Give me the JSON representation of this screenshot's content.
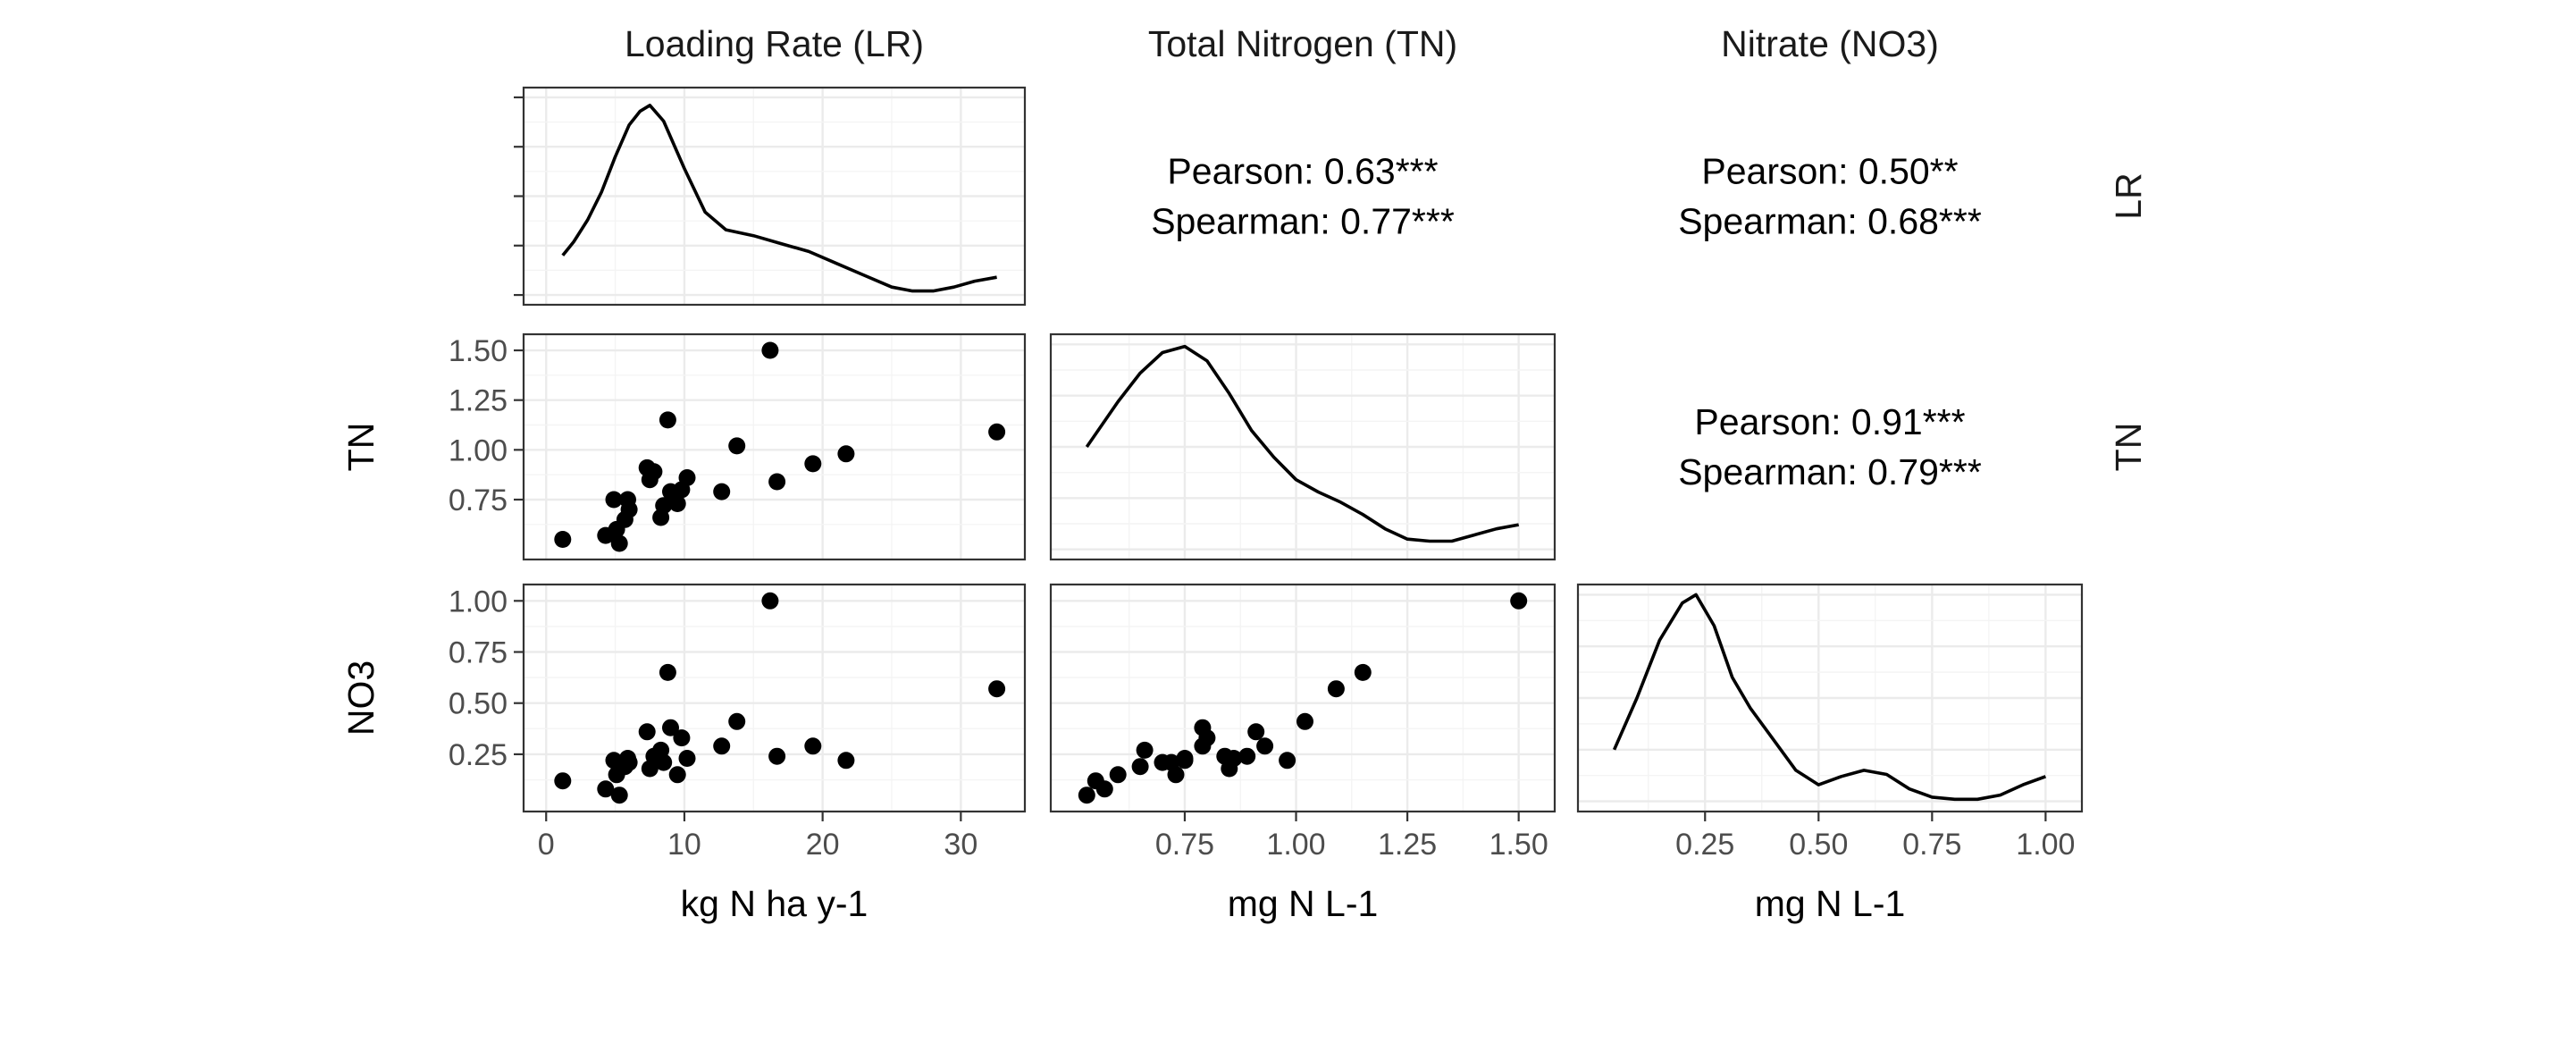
{
  "chart_data": {
    "type": "scatter",
    "variables": [
      {
        "key": "LR",
        "strip_label": "Loading Rate (LR)",
        "row_label": "LR",
        "axis_title": "kg N ha y-1",
        "range": [
          0,
          33
        ],
        "ticks": [
          0,
          10,
          20,
          30
        ],
        "tick_labels": [
          "0",
          "10",
          "20",
          "30"
        ]
      },
      {
        "key": "TN",
        "strip_label": "Total Nitrogen (TN)",
        "row_label": "TN",
        "axis_title": "mg N L-1",
        "range": [
          0.5,
          1.53
        ],
        "ticks": [
          0.75,
          1.0,
          1.25,
          1.5
        ],
        "tick_labels": [
          "0.75",
          "1.00",
          "1.25",
          "1.50"
        ]
      },
      {
        "key": "NO3",
        "strip_label": "Nitrate (NO3)",
        "row_label": "NO3",
        "axis_title": "mg N L-1",
        "range": [
          0.02,
          1.03
        ],
        "ticks": [
          0.25,
          0.5,
          0.75,
          1.0
        ],
        "tick_labels": [
          "0.25",
          "0.50",
          "0.75",
          "1.00"
        ]
      }
    ],
    "observations": [
      {
        "LR": 1.2,
        "TN": 0.55,
        "NO3": 0.12
      },
      {
        "LR": 4.3,
        "TN": 0.57,
        "NO3": 0.08
      },
      {
        "LR": 4.9,
        "TN": 0.75,
        "NO3": 0.22
      },
      {
        "LR": 5.1,
        "TN": 0.6,
        "NO3": 0.15
      },
      {
        "LR": 5.3,
        "TN": 0.53,
        "NO3": 0.05
      },
      {
        "LR": 5.7,
        "TN": 0.65,
        "NO3": 0.19
      },
      {
        "LR": 5.9,
        "TN": 0.75,
        "NO3": 0.23
      },
      {
        "LR": 6.0,
        "TN": 0.7,
        "NO3": 0.21
      },
      {
        "LR": 7.3,
        "TN": 0.91,
        "NO3": 0.36
      },
      {
        "LR": 7.5,
        "TN": 0.85,
        "NO3": 0.18
      },
      {
        "LR": 7.8,
        "TN": 0.89,
        "NO3": 0.24
      },
      {
        "LR": 8.3,
        "TN": 0.66,
        "NO3": 0.27
      },
      {
        "LR": 8.5,
        "TN": 0.72,
        "NO3": 0.21
      },
      {
        "LR": 8.8,
        "TN": 1.15,
        "NO3": 0.65
      },
      {
        "LR": 9.0,
        "TN": 0.79,
        "NO3": 0.38
      },
      {
        "LR": 9.5,
        "TN": 0.73,
        "NO3": 0.15
      },
      {
        "LR": 9.8,
        "TN": 0.8,
        "NO3": 0.33
      },
      {
        "LR": 10.2,
        "TN": 0.86,
        "NO3": 0.23
      },
      {
        "LR": 12.7,
        "TN": 0.79,
        "NO3": 0.29
      },
      {
        "LR": 13.8,
        "TN": 1.02,
        "NO3": 0.41
      },
      {
        "LR": 16.2,
        "TN": 1.5,
        "NO3": 1.0
      },
      {
        "LR": 16.7,
        "TN": 0.84,
        "NO3": 0.24
      },
      {
        "LR": 19.3,
        "TN": 0.93,
        "NO3": 0.29
      },
      {
        "LR": 21.7,
        "TN": 0.98,
        "NO3": 0.22
      },
      {
        "LR": 32.6,
        "TN": 1.09,
        "NO3": 0.57
      }
    ],
    "densities": {
      "LR": {
        "x": [
          1.2,
          2,
          3,
          4,
          5,
          6,
          6.8,
          7.5,
          8.5,
          10,
          11.5,
          13,
          15,
          17,
          19,
          21,
          23,
          25,
          26.5,
          28,
          29.5,
          31,
          32.6
        ],
        "y": [
          0.2,
          0.27,
          0.38,
          0.52,
          0.7,
          0.86,
          0.93,
          0.96,
          0.88,
          0.64,
          0.42,
          0.33,
          0.3,
          0.26,
          0.22,
          0.16,
          0.1,
          0.04,
          0.02,
          0.02,
          0.04,
          0.07,
          0.09
        ]
      },
      "TN": {
        "x": [
          0.53,
          0.6,
          0.65,
          0.7,
          0.75,
          0.8,
          0.85,
          0.9,
          0.95,
          1.0,
          1.05,
          1.1,
          1.15,
          1.2,
          1.25,
          1.3,
          1.35,
          1.4,
          1.45,
          1.5
        ],
        "y": [
          0.5,
          0.72,
          0.86,
          0.96,
          0.99,
          0.92,
          0.76,
          0.58,
          0.45,
          0.34,
          0.28,
          0.23,
          0.17,
          0.1,
          0.05,
          0.04,
          0.04,
          0.07,
          0.1,
          0.12
        ]
      },
      "NO3": {
        "x": [
          0.05,
          0.1,
          0.15,
          0.2,
          0.23,
          0.27,
          0.31,
          0.35,
          0.4,
          0.45,
          0.5,
          0.55,
          0.6,
          0.65,
          0.7,
          0.75,
          0.8,
          0.85,
          0.9,
          0.95,
          1.0
        ],
        "y": [
          0.25,
          0.5,
          0.78,
          0.96,
          1.0,
          0.85,
          0.6,
          0.45,
          0.3,
          0.15,
          0.08,
          0.12,
          0.15,
          0.13,
          0.06,
          0.02,
          0.01,
          0.01,
          0.03,
          0.08,
          0.12
        ]
      }
    },
    "correlations": [
      {
        "row": 0,
        "col": 1,
        "pearson": "Pearson: 0.63***",
        "spearman": "Spearman: 0.77***"
      },
      {
        "row": 0,
        "col": 2,
        "pearson": "Pearson: 0.50**",
        "spearman": "Spearman: 0.68***"
      },
      {
        "row": 1,
        "col": 2,
        "pearson": "Pearson: 0.91***",
        "spearman": "Spearman: 0.79***"
      }
    ],
    "grid": true,
    "colors": {
      "point": "#000000",
      "line": "#000000",
      "grid": "#ebebeb",
      "panel_border": "#333333"
    }
  }
}
